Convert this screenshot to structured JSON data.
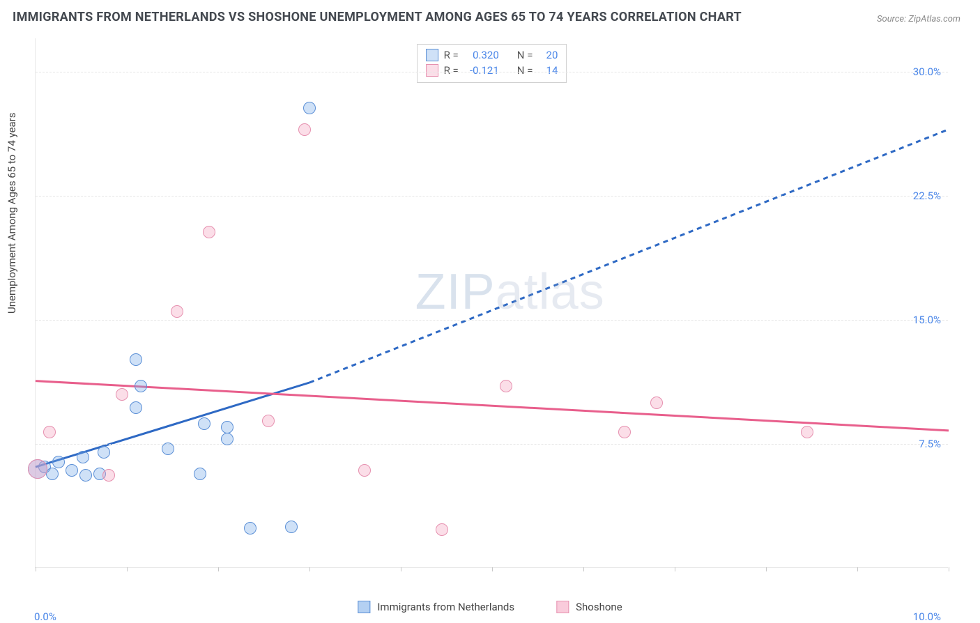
{
  "title": "IMMIGRANTS FROM NETHERLANDS VS SHOSHONE UNEMPLOYMENT AMONG AGES 65 TO 74 YEARS CORRELATION CHART",
  "source": "Source: ZipAtlas.com",
  "ylabel": "Unemployment Among Ages 65 to 74 years",
  "watermark_a": "ZIP",
  "watermark_b": "atlas",
  "chart": {
    "type": "scatter",
    "xlim": [
      0,
      10
    ],
    "ylim": [
      0,
      32
    ],
    "xticks_minor": [
      0,
      1,
      2,
      3,
      4,
      5,
      6,
      7,
      8,
      9,
      10
    ],
    "xtick_labels": {
      "min": "0.0%",
      "max": "10.0%"
    },
    "yticks": [
      {
        "v": 7.5,
        "label": "7.5%"
      },
      {
        "v": 15.0,
        "label": "15.0%"
      },
      {
        "v": 22.5,
        "label": "22.5%"
      },
      {
        "v": 30.0,
        "label": "30.0%"
      }
    ],
    "background_color": "#ffffff",
    "grid_color": "#e6e6e6",
    "point_radius": 9,
    "point_radius_large": 14,
    "series": [
      {
        "key": "netherlands",
        "label": "Immigrants from Netherlands",
        "fill": "rgba(118,169,232,0.35)",
        "stroke": "#5b8fd6",
        "line_color": "#2e69c4",
        "R": "0.320",
        "N": "20",
        "points": [
          {
            "x": 0.02,
            "y": 6.0,
            "r": 14
          },
          {
            "x": 0.1,
            "y": 6.1
          },
          {
            "x": 0.18,
            "y": 5.7
          },
          {
            "x": 0.25,
            "y": 6.4
          },
          {
            "x": 0.4,
            "y": 5.9
          },
          {
            "x": 0.55,
            "y": 5.6
          },
          {
            "x": 0.52,
            "y": 6.7
          },
          {
            "x": 0.7,
            "y": 5.7
          },
          {
            "x": 0.75,
            "y": 7.0
          },
          {
            "x": 1.1,
            "y": 12.6
          },
          {
            "x": 1.15,
            "y": 11.0
          },
          {
            "x": 1.1,
            "y": 9.7
          },
          {
            "x": 1.45,
            "y": 7.2
          },
          {
            "x": 1.8,
            "y": 5.7
          },
          {
            "x": 1.85,
            "y": 8.7
          },
          {
            "x": 2.1,
            "y": 8.5
          },
          {
            "x": 2.1,
            "y": 7.8
          },
          {
            "x": 2.35,
            "y": 2.4
          },
          {
            "x": 2.8,
            "y": 2.5
          },
          {
            "x": 3.0,
            "y": 27.8
          }
        ],
        "trend": {
          "x1": 0.0,
          "y1": 6.1,
          "x2": 3.0,
          "y2": 11.2,
          "dash_x2": 10.0,
          "dash_y2": 26.5
        }
      },
      {
        "key": "shoshone",
        "label": "Shoshone",
        "fill": "rgba(244,160,190,0.35)",
        "stroke": "#e690af",
        "line_color": "#e85f8c",
        "R": "-0.121",
        "N": "14",
        "points": [
          {
            "x": 0.02,
            "y": 6.0,
            "r": 14
          },
          {
            "x": 0.15,
            "y": 8.2
          },
          {
            "x": 0.8,
            "y": 5.6
          },
          {
            "x": 0.95,
            "y": 10.5
          },
          {
            "x": 1.55,
            "y": 15.5
          },
          {
            "x": 1.9,
            "y": 20.3
          },
          {
            "x": 2.55,
            "y": 8.9
          },
          {
            "x": 2.95,
            "y": 26.5
          },
          {
            "x": 3.6,
            "y": 5.9
          },
          {
            "x": 4.45,
            "y": 2.3
          },
          {
            "x": 5.15,
            "y": 11.0
          },
          {
            "x": 6.45,
            "y": 8.2
          },
          {
            "x": 6.8,
            "y": 10.0
          },
          {
            "x": 8.45,
            "y": 8.2
          }
        ],
        "trend": {
          "x1": 0.0,
          "y1": 11.3,
          "x2": 10.0,
          "y2": 8.3
        }
      }
    ]
  },
  "legend": {
    "items": [
      {
        "label": "Immigrants from Netherlands",
        "fill": "rgba(118,169,232,0.55)",
        "stroke": "#5b8fd6"
      },
      {
        "label": "Shoshone",
        "fill": "rgba(244,160,190,0.55)",
        "stroke": "#e690af"
      }
    ]
  }
}
